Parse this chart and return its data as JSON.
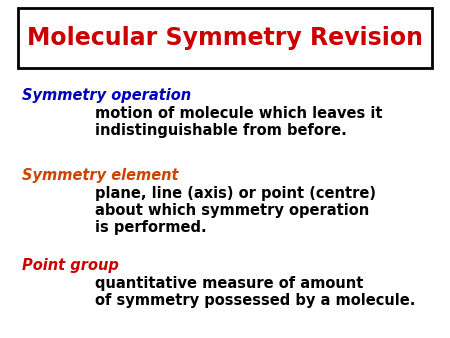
{
  "title": "Molecular Symmetry Revision",
  "title_color": "#cc0000",
  "title_fontsize": 17,
  "bg_color": "#ffffff",
  "box_color": "#000000",
  "sections": [
    {
      "label": "Symmetry operation",
      "label_color": "#0000bb",
      "label_fontsize": 10.5,
      "body_lines": [
        "motion of molecule which leaves it",
        "indistinguishable from before."
      ],
      "body_color": "#000000",
      "body_fontsize": 10.5
    },
    {
      "label": "Symmetry element",
      "label_color": "#cc4400",
      "label_fontsize": 10.5,
      "body_lines": [
        "plane, line (axis) or point (centre)",
        "about which symmetry operation",
        "is performed."
      ],
      "body_color": "#000000",
      "body_fontsize": 10.5
    },
    {
      "label": "Point group",
      "label_color": "#cc0000",
      "label_fontsize": 10.5,
      "body_lines": [
        "quantitative measure of amount",
        "of symmetry possessed by a molecule."
      ],
      "body_color": "#000000",
      "body_fontsize": 10.5
    }
  ]
}
